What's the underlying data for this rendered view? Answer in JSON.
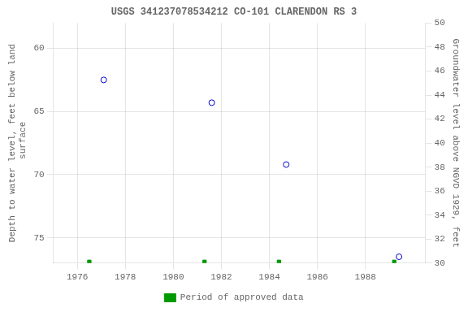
{
  "chart_data": {
    "type": "scatter",
    "title": "USGS 341237078534212 CO-101 CLARENDON RS 3",
    "ylabel": "Depth to water level, feet below land\n surface",
    "y2label": "Groundwater level above NGVD 1929, feet",
    "xlim": [
      1975.0,
      1990.5
    ],
    "xticks": [
      1976,
      1978,
      1980,
      1982,
      1984,
      1986,
      1988
    ],
    "ylim": [
      77.0,
      58.0
    ],
    "yticks": [
      60,
      65,
      70,
      75
    ],
    "y2lim": [
      30.0,
      50.0
    ],
    "y2ticks": [
      30,
      32,
      34,
      36,
      38,
      40,
      42,
      44,
      46,
      48,
      50
    ],
    "grid": true,
    "legend": "bottom",
    "series": [
      {
        "x": [
          1977.1,
          1981.6,
          1984.7,
          1989.4
        ],
        "values": [
          62.5,
          64.3,
          69.2,
          76.5
        ],
        "color": "#0000cc",
        "marker": "circle"
      },
      {
        "name": "Period of approved data",
        "x": [
          1976.5,
          1981.3,
          1984.4,
          1989.2
        ],
        "values": [
          76.9,
          76.9,
          76.9,
          76.9
        ],
        "color": "#009900",
        "marker": "square"
      }
    ]
  }
}
